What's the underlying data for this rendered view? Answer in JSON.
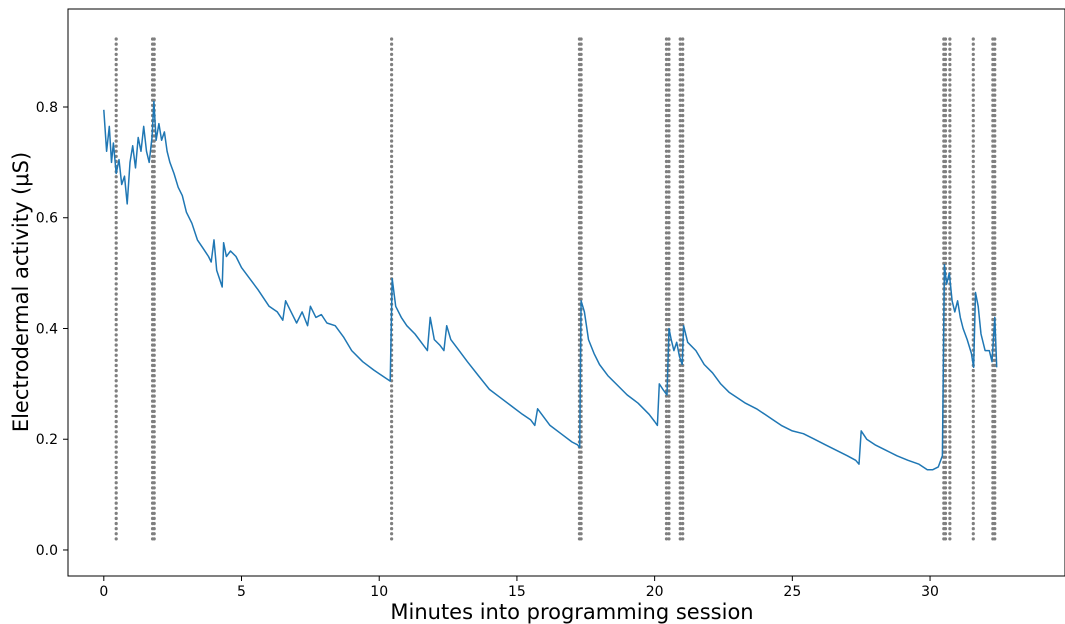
{
  "chart_data": {
    "type": "line",
    "title": "",
    "xlabel": "Minutes into programming session",
    "ylabel": "Electrodermal activity (μS)",
    "xlim": [
      -1.3,
      34.9
    ],
    "ylim": [
      -0.047,
      0.977
    ],
    "x_ticks": [
      0,
      5,
      10,
      15,
      20,
      25,
      30
    ],
    "x_tick_labels": [
      "0",
      "5",
      "10",
      "15",
      "20",
      "25",
      "30"
    ],
    "y_ticks": [
      0.0,
      0.2,
      0.4,
      0.6,
      0.8
    ],
    "y_tick_labels": [
      "0.0",
      "0.2",
      "0.4",
      "0.6",
      "0.8"
    ],
    "grid": false,
    "line_color": "#1f77b4",
    "marker_color": "#7f7f7f",
    "series": [
      {
        "values": [
          [
            0.0,
            0.795
          ],
          [
            0.1,
            0.72
          ],
          [
            0.2,
            0.765
          ],
          [
            0.28,
            0.7
          ],
          [
            0.35,
            0.735
          ],
          [
            0.45,
            0.68
          ],
          [
            0.55,
            0.705
          ],
          [
            0.65,
            0.66
          ],
          [
            0.75,
            0.675
          ],
          [
            0.85,
            0.625
          ],
          [
            0.95,
            0.7
          ],
          [
            1.05,
            0.73
          ],
          [
            1.15,
            0.69
          ],
          [
            1.25,
            0.745
          ],
          [
            1.35,
            0.72
          ],
          [
            1.45,
            0.765
          ],
          [
            1.55,
            0.72
          ],
          [
            1.65,
            0.7
          ],
          [
            1.75,
            0.745
          ],
          [
            1.82,
            0.81
          ],
          [
            1.9,
            0.74
          ],
          [
            2.0,
            0.77
          ],
          [
            2.1,
            0.74
          ],
          [
            2.2,
            0.755
          ],
          [
            2.3,
            0.72
          ],
          [
            2.4,
            0.7
          ],
          [
            2.55,
            0.68
          ],
          [
            2.7,
            0.655
          ],
          [
            2.85,
            0.64
          ],
          [
            3.0,
            0.61
          ],
          [
            3.2,
            0.59
          ],
          [
            3.4,
            0.56
          ],
          [
            3.6,
            0.545
          ],
          [
            3.8,
            0.53
          ],
          [
            3.9,
            0.52
          ],
          [
            4.0,
            0.56
          ],
          [
            4.1,
            0.505
          ],
          [
            4.2,
            0.49
          ],
          [
            4.3,
            0.475
          ],
          [
            4.35,
            0.555
          ],
          [
            4.45,
            0.53
          ],
          [
            4.6,
            0.54
          ],
          [
            4.8,
            0.53
          ],
          [
            5.0,
            0.51
          ],
          [
            5.3,
            0.49
          ],
          [
            5.6,
            0.47
          ],
          [
            6.0,
            0.44
          ],
          [
            6.3,
            0.43
          ],
          [
            6.5,
            0.415
          ],
          [
            6.6,
            0.45
          ],
          [
            6.8,
            0.43
          ],
          [
            7.0,
            0.41
          ],
          [
            7.2,
            0.43
          ],
          [
            7.4,
            0.405
          ],
          [
            7.5,
            0.44
          ],
          [
            7.7,
            0.42
          ],
          [
            7.9,
            0.425
          ],
          [
            8.1,
            0.41
          ],
          [
            8.4,
            0.405
          ],
          [
            8.7,
            0.385
          ],
          [
            9.0,
            0.36
          ],
          [
            9.4,
            0.34
          ],
          [
            9.8,
            0.325
          ],
          [
            10.1,
            0.315
          ],
          [
            10.4,
            0.305
          ],
          [
            10.47,
            0.49
          ],
          [
            10.6,
            0.44
          ],
          [
            10.8,
            0.42
          ],
          [
            11.0,
            0.405
          ],
          [
            11.3,
            0.39
          ],
          [
            11.6,
            0.37
          ],
          [
            11.75,
            0.36
          ],
          [
            11.85,
            0.42
          ],
          [
            12.0,
            0.38
          ],
          [
            12.2,
            0.37
          ],
          [
            12.35,
            0.36
          ],
          [
            12.45,
            0.405
          ],
          [
            12.6,
            0.38
          ],
          [
            12.9,
            0.36
          ],
          [
            13.2,
            0.34
          ],
          [
            13.6,
            0.315
          ],
          [
            14.0,
            0.29
          ],
          [
            14.4,
            0.275
          ],
          [
            14.8,
            0.26
          ],
          [
            15.2,
            0.245
          ],
          [
            15.5,
            0.235
          ],
          [
            15.65,
            0.225
          ],
          [
            15.75,
            0.255
          ],
          [
            15.9,
            0.245
          ],
          [
            16.2,
            0.225
          ],
          [
            16.6,
            0.21
          ],
          [
            17.0,
            0.195
          ],
          [
            17.2,
            0.19
          ],
          [
            17.28,
            0.185
          ],
          [
            17.33,
            0.45
          ],
          [
            17.45,
            0.43
          ],
          [
            17.6,
            0.38
          ],
          [
            17.8,
            0.355
          ],
          [
            18.0,
            0.335
          ],
          [
            18.3,
            0.315
          ],
          [
            18.6,
            0.3
          ],
          [
            19.0,
            0.28
          ],
          [
            19.4,
            0.265
          ],
          [
            19.8,
            0.245
          ],
          [
            20.0,
            0.232
          ],
          [
            20.1,
            0.225
          ],
          [
            20.17,
            0.3
          ],
          [
            20.3,
            0.29
          ],
          [
            20.45,
            0.28
          ],
          [
            20.52,
            0.4
          ],
          [
            20.6,
            0.38
          ],
          [
            20.7,
            0.36
          ],
          [
            20.8,
            0.375
          ],
          [
            20.9,
            0.35
          ],
          [
            21.0,
            0.335
          ],
          [
            21.05,
            0.405
          ],
          [
            21.2,
            0.375
          ],
          [
            21.5,
            0.36
          ],
          [
            21.8,
            0.335
          ],
          [
            22.1,
            0.32
          ],
          [
            22.4,
            0.3
          ],
          [
            22.7,
            0.285
          ],
          [
            23.0,
            0.275
          ],
          [
            23.3,
            0.265
          ],
          [
            23.7,
            0.255
          ],
          [
            24.0,
            0.245
          ],
          [
            24.3,
            0.235
          ],
          [
            24.6,
            0.225
          ],
          [
            25.0,
            0.215
          ],
          [
            25.4,
            0.21
          ],
          [
            25.8,
            0.2
          ],
          [
            26.2,
            0.19
          ],
          [
            26.6,
            0.18
          ],
          [
            27.0,
            0.17
          ],
          [
            27.3,
            0.162
          ],
          [
            27.42,
            0.155
          ],
          [
            27.5,
            0.215
          ],
          [
            27.7,
            0.2
          ],
          [
            28.0,
            0.19
          ],
          [
            28.4,
            0.18
          ],
          [
            28.8,
            0.17
          ],
          [
            29.2,
            0.162
          ],
          [
            29.6,
            0.155
          ],
          [
            29.9,
            0.145
          ],
          [
            30.1,
            0.145
          ],
          [
            30.3,
            0.15
          ],
          [
            30.45,
            0.17
          ],
          [
            30.52,
            0.515
          ],
          [
            30.6,
            0.48
          ],
          [
            30.7,
            0.5
          ],
          [
            30.8,
            0.45
          ],
          [
            30.9,
            0.43
          ],
          [
            31.0,
            0.45
          ],
          [
            31.1,
            0.42
          ],
          [
            31.2,
            0.4
          ],
          [
            31.35,
            0.38
          ],
          [
            31.5,
            0.355
          ],
          [
            31.58,
            0.33
          ],
          [
            31.65,
            0.465
          ],
          [
            31.75,
            0.44
          ],
          [
            31.85,
            0.39
          ],
          [
            32.0,
            0.36
          ],
          [
            32.15,
            0.36
          ],
          [
            32.25,
            0.34
          ],
          [
            32.35,
            0.42
          ],
          [
            32.42,
            0.33
          ]
        ]
      }
    ],
    "event_markers": {
      "x": [
        0.45,
        1.77,
        1.83,
        10.45,
        17.27,
        17.33,
        20.43,
        20.52,
        20.93,
        21.02,
        30.5,
        30.56,
        30.72,
        31.57,
        32.28,
        32.35
      ],
      "y_range": [
        0.02,
        0.93
      ]
    }
  }
}
